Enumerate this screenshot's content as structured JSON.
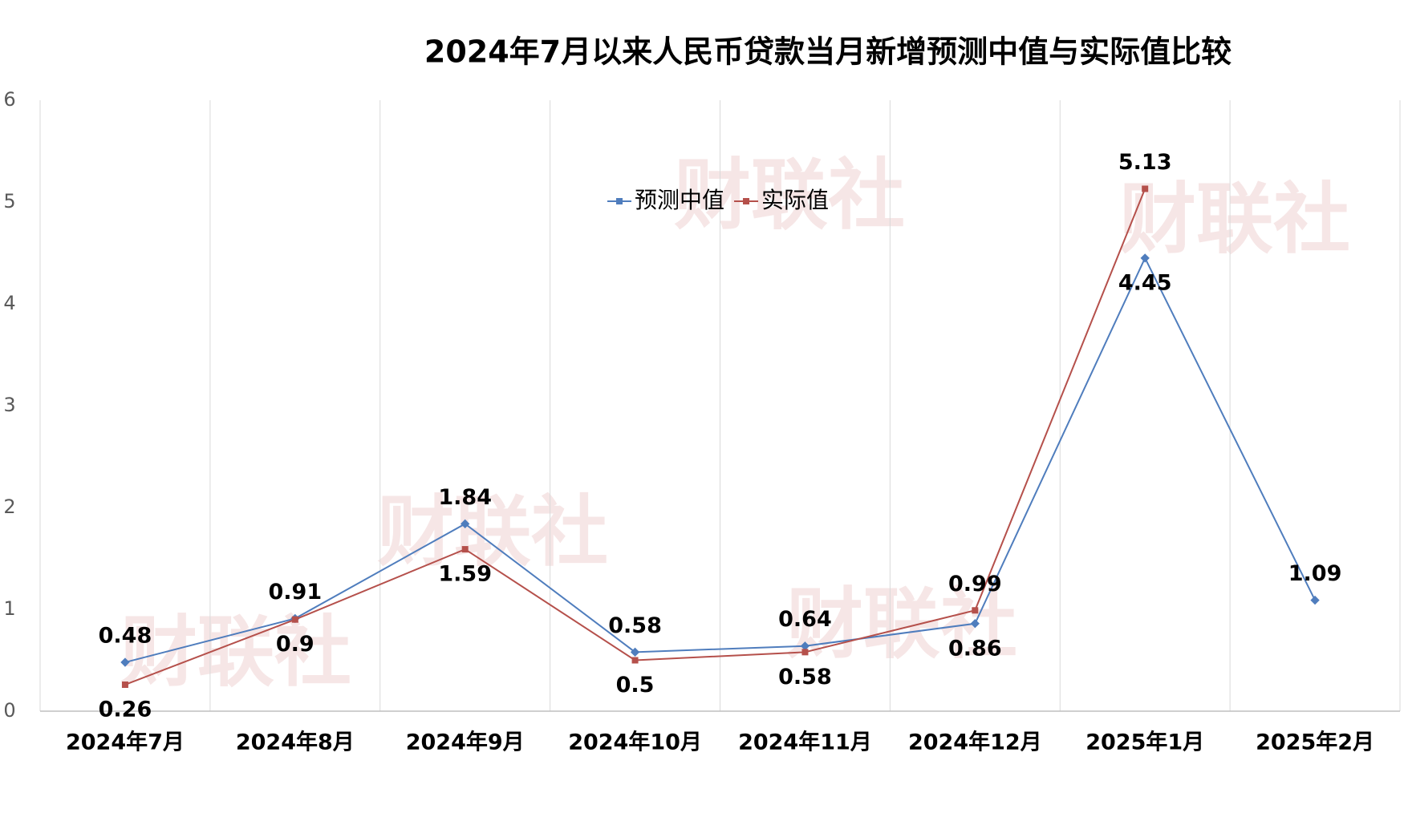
{
  "chart_data": {
    "type": "line",
    "title": "2024年7月以来人民币贷款当月新增预测中值与实际值比较",
    "watermark": "财联社",
    "categories": [
      "2024年7月",
      "2024年8月",
      "2024年9月",
      "2024年10月",
      "2024年11月",
      "2024年12月",
      "2025年1月",
      "2025年2月"
    ],
    "series": [
      {
        "name": "预测中值",
        "color": "#4f7dbd",
        "values": [
          0.48,
          0.91,
          1.84,
          0.58,
          0.64,
          0.86,
          4.45,
          1.09
        ]
      },
      {
        "name": "实际值",
        "color": "#b5504b",
        "values": [
          0.26,
          0.9,
          1.59,
          0.5,
          0.58,
          0.99,
          5.13,
          null
        ]
      }
    ],
    "ylim": [
      0,
      6
    ],
    "yticks": [
      0,
      1,
      2,
      3,
      4,
      5,
      6
    ],
    "grid": true,
    "legend": "top"
  }
}
